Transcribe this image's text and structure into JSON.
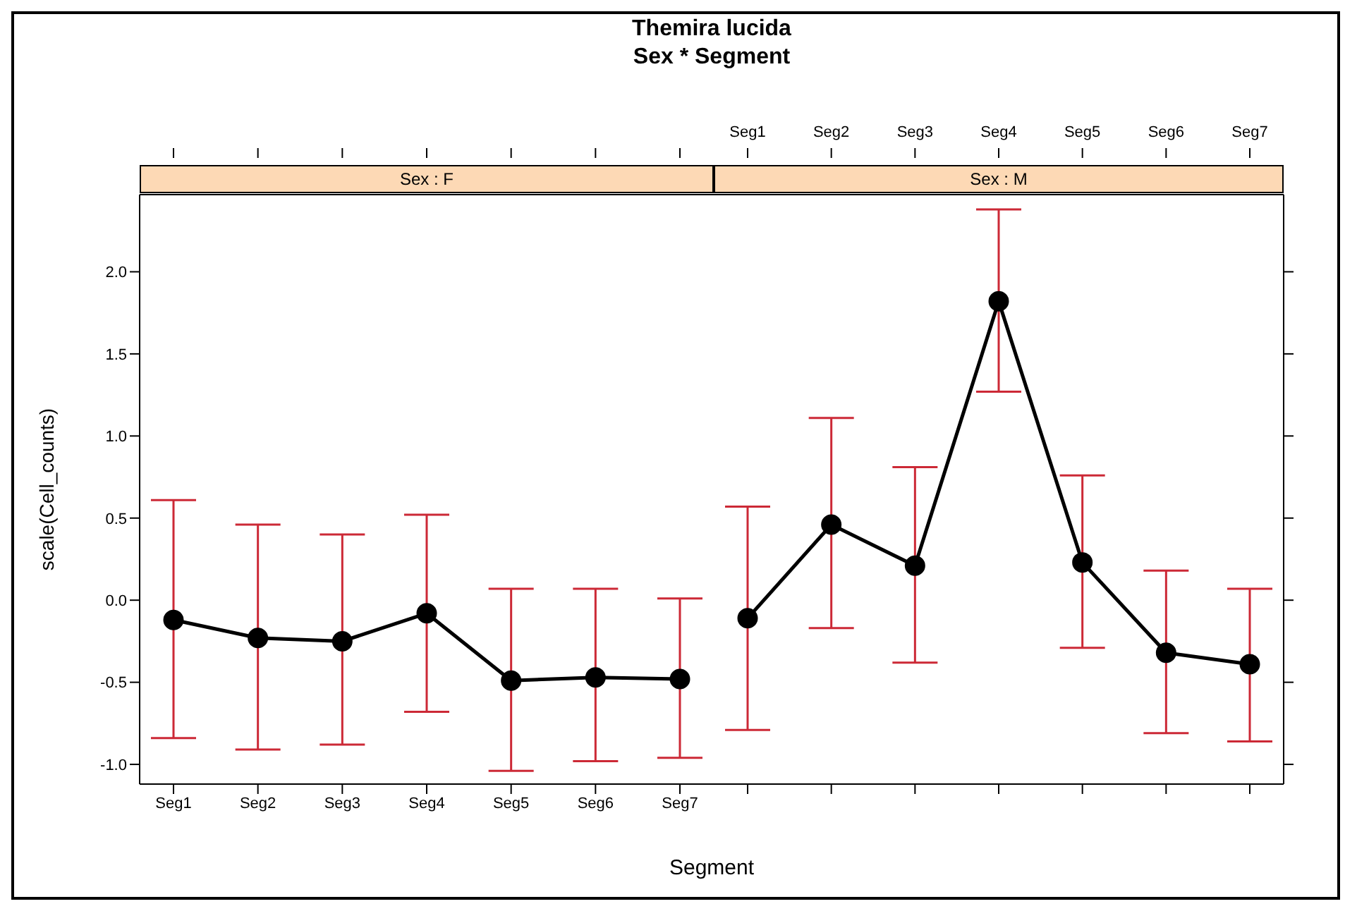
{
  "chart_data": [
    {
      "type": "line",
      "title": "Themira lucida",
      "subtitle": "Sex * Segment",
      "annotations": [
        "Sex : F"
      ],
      "xlabel": "Segment",
      "ylabel": "scale(Cell_counts)",
      "categories": [
        "Seg1",
        "Seg2",
        "Seg3",
        "Seg4",
        "Seg5",
        "Seg6",
        "Seg7"
      ],
      "series": [
        {
          "color": "#000000",
          "values": [
            -0.12,
            -0.23,
            -0.25,
            -0.08,
            -0.49,
            -0.47,
            -0.48
          ],
          "errors": [
            [
              -0.84,
              0.61
            ],
            [
              -0.91,
              0.46
            ],
            [
              -0.88,
              0.4
            ],
            [
              -0.68,
              0.52
            ],
            [
              -1.04,
              0.07
            ],
            [
              -0.98,
              0.07
            ],
            [
              -0.96,
              0.01
            ]
          ]
        }
      ],
      "ylim": [
        -1.12,
        2.47
      ],
      "yticks": [
        {
          "value": -1,
          "label": "-1.0"
        },
        -0.5,
        {
          "value": 0,
          "label": "0.0"
        },
        0.5,
        {
          "value": 1,
          "label": "1.0"
        },
        1.5,
        {
          "value": 2,
          "label": "2.0"
        }
      ],
      "marker": "circle",
      "line_style": "solid"
    },
    {
      "type": "line",
      "annotations": [
        "Sex : M"
      ],
      "categories": [
        "Seg1",
        "Seg2",
        "Seg3",
        "Seg4",
        "Seg5",
        "Seg6",
        "Seg7"
      ],
      "series": [
        {
          "color": "#000000",
          "values": [
            -0.11,
            0.46,
            0.21,
            1.82,
            0.23,
            -0.32,
            -0.39
          ],
          "errors": [
            [
              -0.79,
              0.57
            ],
            [
              -0.17,
              1.11
            ],
            [
              -0.38,
              0.81
            ],
            [
              1.27,
              2.38
            ],
            [
              -0.29,
              0.76
            ],
            [
              -0.81,
              0.18
            ],
            [
              -0.86,
              0.07
            ]
          ]
        }
      ],
      "ylim": [
        -1.12,
        2.47
      ],
      "yticks": [
        -1,
        -0.5,
        0,
        0.5,
        1,
        1.5,
        2
      ],
      "marker": "circle",
      "line_style": "solid",
      "tick_labels": "x"
    }
  ]
}
